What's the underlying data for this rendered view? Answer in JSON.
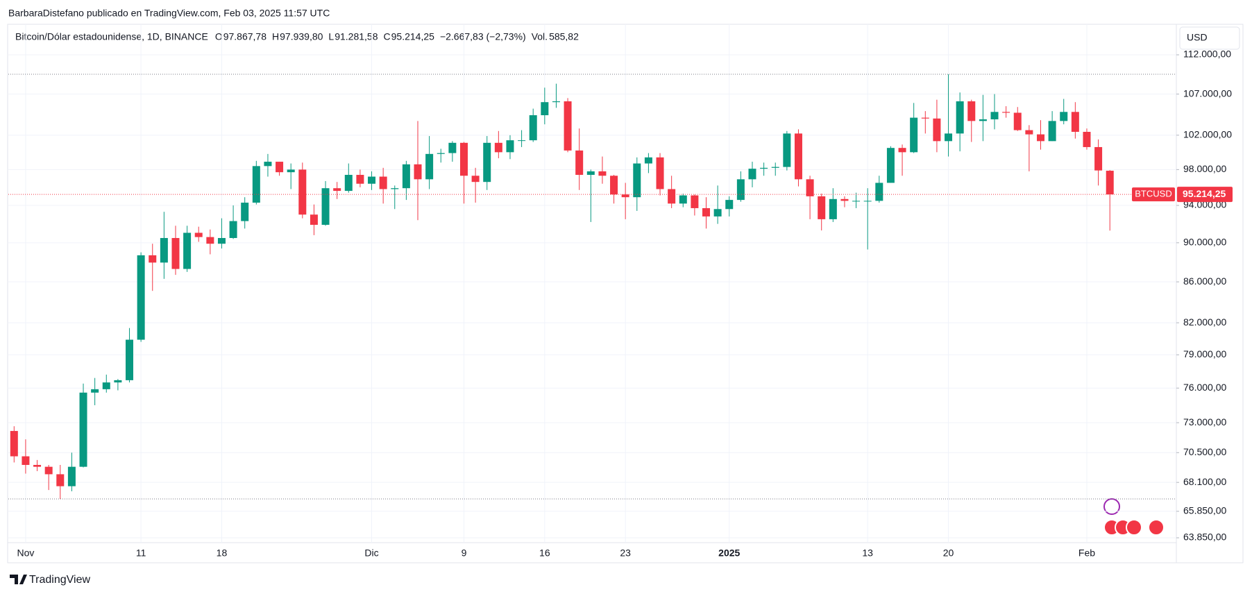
{
  "header": {
    "author": "BarbaraDistefano publicado en TradingView.com, Feb 03, 2025 11:57 UTC",
    "footer": "TradingView",
    "currency": "USD"
  },
  "legend": {
    "symbol": "Bitcoin/Dólar estadounidense, 1D, BINANCE",
    "items": [
      {
        "label": "O",
        "value": "97.867,78"
      },
      {
        "label": "H",
        "value": "97.939,80"
      },
      {
        "label": "L",
        "value": "91.281,58"
      },
      {
        "label": "C",
        "value": "95.214,25"
      }
    ],
    "change": "−2.667,83 (−2,73%)",
    "volume_label": "Vol.",
    "volume": "585,82"
  },
  "chart_data": {
    "type": "candlestick",
    "log": true,
    "grid": true,
    "up_color": "#089981",
    "down_color": "#f23645",
    "price_label": {
      "symbol": "BTCUSD",
      "label": "95.214,25"
    },
    "categories": [
      null,
      "Nov",
      null,
      null,
      null,
      null,
      null,
      null,
      null,
      null,
      null,
      "11",
      null,
      null,
      null,
      null,
      null,
      null,
      "18",
      null,
      null,
      null,
      null,
      null,
      null,
      null,
      null,
      null,
      null,
      null,
      null,
      "Dic",
      null,
      null,
      null,
      null,
      null,
      null,
      null,
      "9",
      null,
      null,
      null,
      null,
      null,
      null,
      "16",
      null,
      null,
      null,
      null,
      null,
      null,
      "23",
      null,
      null,
      null,
      null,
      null,
      null,
      null,
      null,
      "2025",
      null,
      null,
      null,
      null,
      null,
      null,
      null,
      null,
      null,
      null,
      null,
      "13",
      null,
      null,
      null,
      null,
      null,
      null,
      "20",
      null,
      null,
      null,
      null,
      null,
      null,
      null,
      null,
      null,
      null,
      null,
      "Feb",
      null,
      null
    ],
    "open": [
      72300,
      70200,
      69500,
      69350,
      68750,
      67800,
      69350,
      75600,
      75900,
      76500,
      76700,
      80400,
      88700,
      87950,
      90500,
      87300,
      91050,
      90600,
      89900,
      90500,
      92300,
      94300,
      98400,
      98900,
      97700,
      98000,
      93000,
      91900,
      95900,
      95600,
      97400,
      96400,
      97200,
      95800,
      95900,
      98600,
      96900,
      99800,
      99900,
      101100,
      97300,
      96600,
      101100,
      100000,
      101400,
      101400,
      104400,
      106000,
      106100,
      100200,
      97400,
      97800,
      97300,
      95200,
      94900,
      98700,
      99400,
      95800,
      94200,
      95100,
      93700,
      92800,
      93600,
      94600,
      96900,
      98100,
      98200,
      98300,
      102200,
      96900,
      95000,
      92500,
      94700,
      94500,
      94500,
      94500,
      96500,
      100500,
      100000,
      104100,
      104000,
      101300,
      102200,
      106100,
      103700,
      103900,
      104800,
      104700,
      102600,
      102100,
      101300,
      103700,
      104800,
      102400,
      100600,
      97867.78
    ],
    "high": [
      72700,
      71600,
      69900,
      69500,
      69500,
      70500,
      76400,
      76900,
      77200,
      76800,
      81500,
      89000,
      89900,
      93300,
      91800,
      91800,
      91700,
      91400,
      92600,
      94000,
      94900,
      99000,
      99800,
      98900,
      98700,
      98800,
      94100,
      96700,
      96600,
      98700,
      98000,
      97800,
      98200,
      96200,
      99000,
      103700,
      101900,
      100400,
      101300,
      101200,
      98200,
      101900,
      102500,
      102000,
      102600,
      105200,
      107800,
      108300,
      106500,
      102800,
      98000,
      99500,
      97400,
      96500,
      99400,
      99900,
      99900,
      97300,
      95300,
      95200,
      94900,
      96200,
      95000,
      97800,
      98900,
      98800,
      98800,
      102500,
      102700,
      97300,
      95300,
      95900,
      95000,
      95400,
      95900,
      97300,
      100700,
      100900,
      105900,
      104900,
      106300,
      109500,
      107200,
      106300,
      106900,
      107000,
      105500,
      105400,
      103200,
      103800,
      104900,
      106400,
      106000,
      102800,
      101500,
      97939.8
    ],
    "low": [
      69700,
      68800,
      69000,
      67500,
      66800,
      67400,
      69300,
      74500,
      75600,
      75800,
      76500,
      80200,
      85100,
      86300,
      86700,
      87000,
      90100,
      88800,
      89400,
      90400,
      91500,
      94100,
      97200,
      97300,
      95800,
      92600,
      90800,
      91800,
      94700,
      95400,
      96000,
      95700,
      94200,
      93600,
      94600,
      92400,
      95800,
      98800,
      98900,
      94200,
      94300,
      95700,
      99300,
      99200,
      100600,
      101200,
      103300,
      105300,
      100000,
      95700,
      92200,
      96400,
      94200,
      92500,
      93400,
      97600,
      95100,
      93700,
      93800,
      92900,
      91500,
      92000,
      92800,
      94400,
      96000,
      97300,
      97300,
      97900,
      96100,
      92500,
      91300,
      92200,
      93800,
      93700,
      89300,
      94300,
      96500,
      97300,
      99900,
      102200,
      100000,
      99500,
      100100,
      101200,
      101300,
      102700,
      104100,
      102500,
      97800,
      100300,
      101300,
      103300,
      101600,
      100300,
      96200,
      91281.58
    ],
    "close": [
      70200,
      69500,
      69350,
      68750,
      67800,
      69350,
      75600,
      75900,
      76500,
      76700,
      80400,
      88700,
      87950,
      90500,
      87300,
      91050,
      90600,
      89900,
      90500,
      92300,
      94300,
      98400,
      98900,
      97700,
      98000,
      93000,
      91900,
      95900,
      95600,
      97400,
      96400,
      97200,
      95800,
      95900,
      98600,
      96900,
      99800,
      99900,
      101100,
      97300,
      96600,
      101100,
      100000,
      101400,
      101400,
      104400,
      106000,
      106100,
      100200,
      97400,
      97800,
      97300,
      95200,
      94900,
      98700,
      99400,
      95800,
      94200,
      95100,
      93700,
      92800,
      93600,
      94600,
      96900,
      98100,
      98200,
      98300,
      102200,
      96900,
      95000,
      92500,
      94700,
      94500,
      94500,
      94500,
      96500,
      100500,
      100000,
      104100,
      104000,
      101300,
      102200,
      106100,
      103700,
      103900,
      104800,
      104700,
      102600,
      102100,
      101300,
      103700,
      104800,
      102400,
      100600,
      97900,
      95214.25
    ],
    "ylim": [
      63490,
      116050
    ],
    "yticks": [
      {
        "value": 112000,
        "label": "112.000,00"
      },
      {
        "value": 107000,
        "label": "107.000,00"
      },
      {
        "value": 102000,
        "label": "102.000,00"
      },
      {
        "value": 98000,
        "label": "98.000,00"
      },
      {
        "value": 94000,
        "label": "94.000,00"
      },
      {
        "value": 90000,
        "label": "90.000,00"
      },
      {
        "value": 86000,
        "label": "86.000,00"
      },
      {
        "value": 82000,
        "label": "82.000,00"
      },
      {
        "value": 79000,
        "label": "79.000,00"
      },
      {
        "value": 76000,
        "label": "76.000,00"
      },
      {
        "value": 73000,
        "label": "73.000,00"
      },
      {
        "value": 70500,
        "label": "70.500,00"
      },
      {
        "value": 68100,
        "label": "68.100,00"
      },
      {
        "value": 65850,
        "label": "65.850,00"
      },
      {
        "value": 63850,
        "label": "63.850,00"
      }
    ]
  }
}
